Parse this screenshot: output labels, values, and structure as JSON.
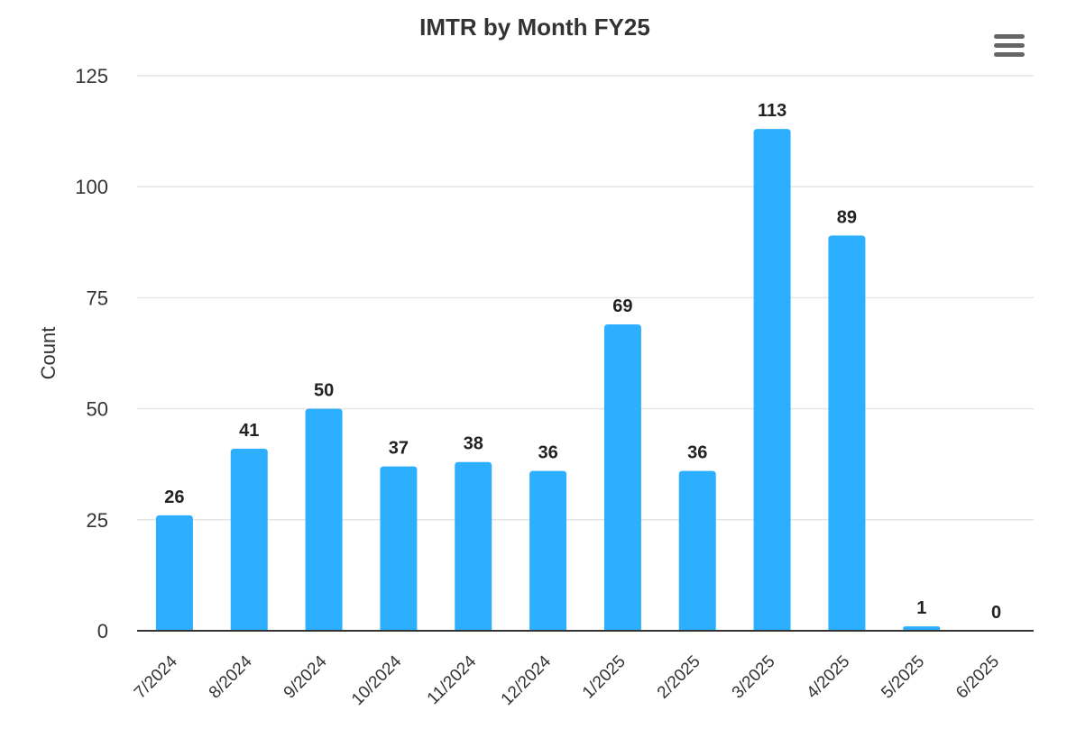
{
  "chart_data": {
    "type": "bar",
    "title": "IMTR by Month FY25",
    "xlabel": "",
    "ylabel": "Count",
    "ylim": [
      0,
      125
    ],
    "yticks": [
      "0",
      "25",
      "50",
      "75",
      "100",
      "125"
    ],
    "categories": [
      "7/2024",
      "8/2024",
      "9/2024",
      "10/2024",
      "11/2024",
      "12/2024",
      "1/2025",
      "2/2025",
      "3/2025",
      "4/2025",
      "5/2025",
      "6/2025"
    ],
    "values": [
      26,
      41,
      50,
      37,
      38,
      36,
      69,
      36,
      113,
      89,
      1,
      0
    ],
    "data_labels": [
      "26",
      "41",
      "50",
      "37",
      "38",
      "36",
      "69",
      "36",
      "113",
      "89",
      "1",
      "0"
    ],
    "bar_color": "#2caffe",
    "grid": true,
    "legend": "none"
  },
  "menu": {
    "icon": "hamburger-menu-icon"
  }
}
